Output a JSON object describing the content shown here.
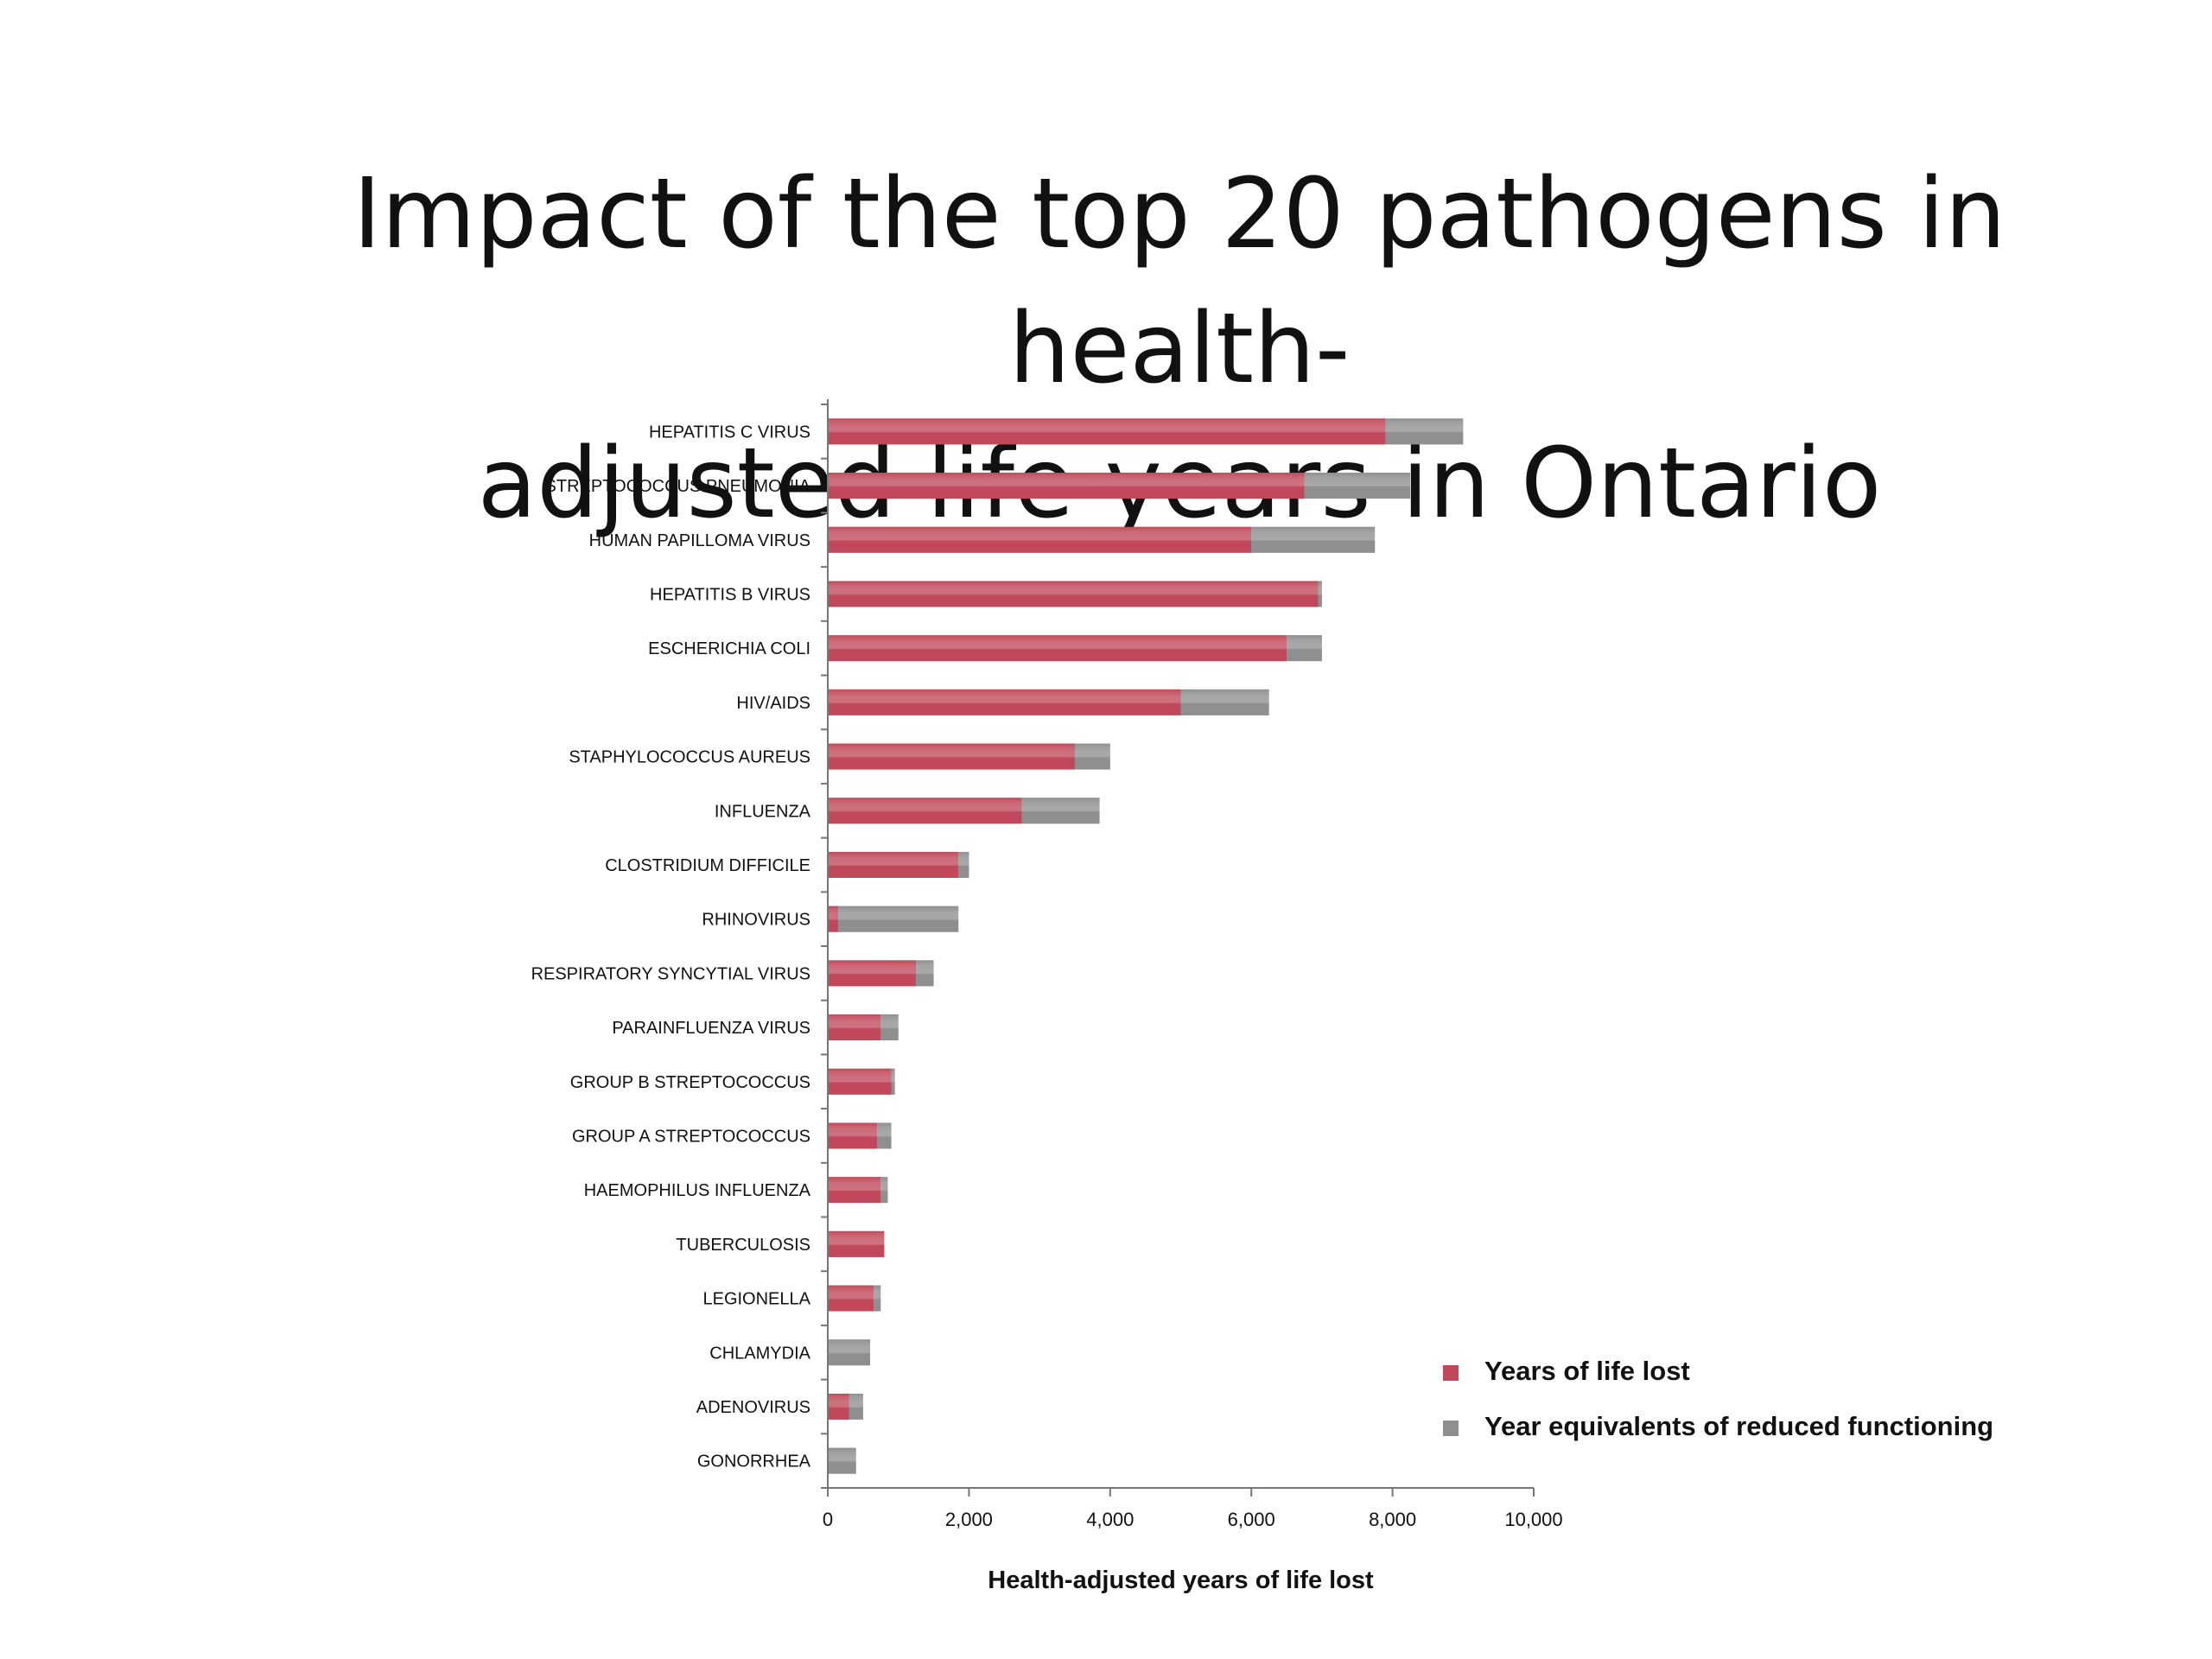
{
  "slide": {
    "title_line1": "Impact of the top 20 pathogens in health-",
    "title_line2": "adjusted life years in Ontario"
  },
  "colors": {
    "years_of_life_lost": "#c0485a",
    "reduced_functioning": "#8f8f8f",
    "axis": "#777777",
    "text": "#111111"
  },
  "chart_data": {
    "type": "bar",
    "orientation": "horizontal",
    "stacked": true,
    "title": "",
    "xlabel": "Health-adjusted years of life lost",
    "ylabel": "",
    "xlim": [
      0,
      10000
    ],
    "xticks": [
      0,
      2000,
      4000,
      6000,
      8000,
      10000
    ],
    "xtick_labels": [
      "0",
      "2,000",
      "4,000",
      "6,000",
      "8,000",
      "10,000"
    ],
    "grid": false,
    "legend_position": "bottom-right",
    "categories": [
      "HEPATITIS C VIRUS",
      "STREPTOCOCCUS PNEUMONIA",
      "HUMAN PAPILLOMA VIRUS",
      "HEPATITIS B VIRUS",
      "ESCHERICHIA COLI",
      "HIV/AIDS",
      "STAPHYLOCOCCUS AUREUS",
      "INFLUENZA",
      "CLOSTRIDIUM DIFFICILE",
      "RHINOVIRUS",
      "RESPIRATORY SYNCYTIAL VIRUS",
      "PARAINFLUENZA VIRUS",
      "GROUP B STREPTOCOCCUS",
      "GROUP A STREPTOCOCCUS",
      "HAEMOPHILUS INFLUENZA",
      "TUBERCULOSIS",
      "LEGIONELLA",
      "CHLAMYDIA",
      "ADENOVIRUS",
      "GONORRHEA"
    ],
    "series": [
      {
        "name": "Years of life lost",
        "color": "#c0485a",
        "values": [
          7900,
          6750,
          6000,
          6950,
          6500,
          5000,
          3500,
          2750,
          1850,
          150,
          1250,
          750,
          900,
          700,
          750,
          800,
          650,
          0,
          300,
          0
        ]
      },
      {
        "name": "Year equivalents of reduced functioning",
        "color": "#8f8f8f",
        "values": [
          1100,
          1500,
          1750,
          50,
          500,
          1250,
          500,
          1100,
          150,
          1700,
          250,
          250,
          50,
          200,
          100,
          0,
          100,
          600,
          200,
          400
        ]
      }
    ]
  }
}
